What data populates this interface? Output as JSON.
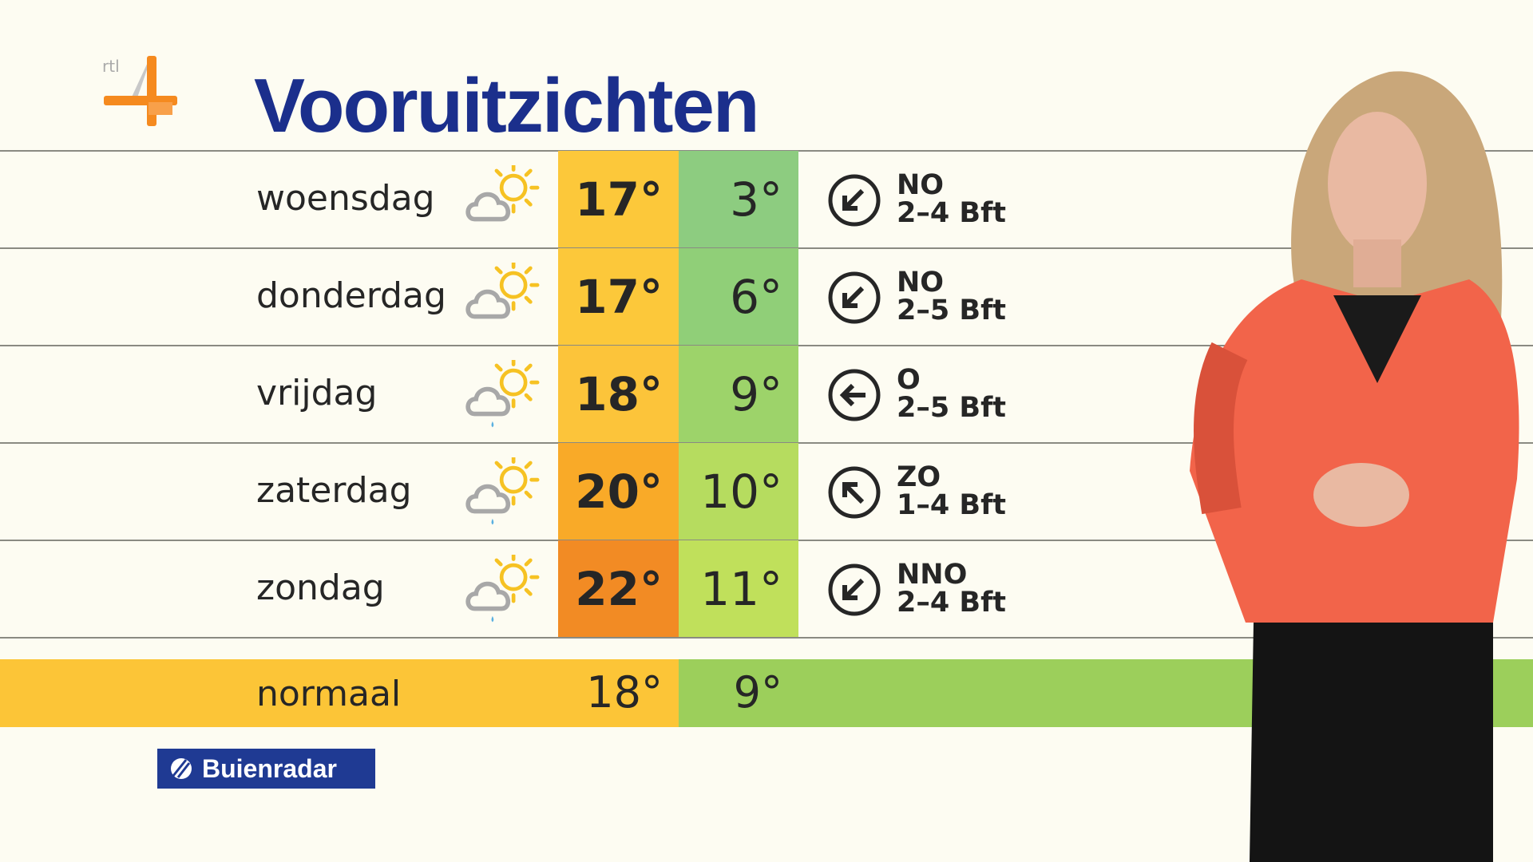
{
  "logo": {
    "text": "rtl 4",
    "accent": "#f58a1f"
  },
  "title": "Vooruitzichten",
  "forecast": [
    {
      "day": "woensdag",
      "icon": "sun-cloud-icon",
      "high": "17°",
      "low": "3°",
      "wind_dir": "NO",
      "wind_force": "2–4 Bft",
      "arrow": "arrow-down-left",
      "high_color": "#fcc83a",
      "low_color": "#8dcc80"
    },
    {
      "day": "donderdag",
      "icon": "sun-cloud-icon",
      "high": "17°",
      "low": "6°",
      "wind_dir": "NO",
      "wind_force": "2–5 Bft",
      "arrow": "arrow-down-left",
      "high_color": "#fcc83a",
      "low_color": "#90cf78"
    },
    {
      "day": "vrijdag",
      "icon": "sun-cloud-rain-icon",
      "high": "18°",
      "low": "9°",
      "wind_dir": "O",
      "wind_force": "2–5 Bft",
      "arrow": "arrow-left",
      "high_color": "#fcc43a",
      "low_color": "#9dd36a"
    },
    {
      "day": "zaterdag",
      "icon": "sun-cloud-rain-icon",
      "high": "20°",
      "low": "10°",
      "wind_dir": "ZO",
      "wind_force": "1–4 Bft",
      "arrow": "arrow-up-left",
      "high_color": "#f9aa28",
      "low_color": "#b6dc5f"
    },
    {
      "day": "zondag",
      "icon": "sun-cloud-rain-icon",
      "high": "22°",
      "low": "11°",
      "wind_dir": "NNO",
      "wind_force": "2–4 Bft",
      "arrow": "arrow-down-left",
      "high_color": "#f28b24",
      "low_color": "#c0e05b"
    }
  ],
  "normal": {
    "label": "normaal",
    "high": "18°",
    "low": "9°"
  },
  "sponsor": "Buienradar"
}
